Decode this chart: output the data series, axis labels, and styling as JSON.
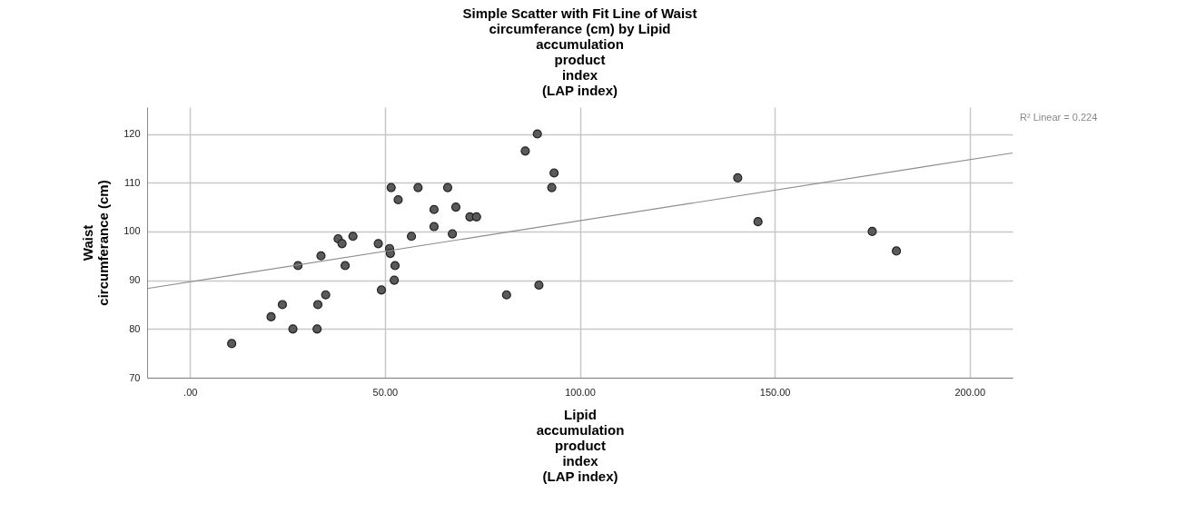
{
  "chart_data": {
    "type": "scatter",
    "title": "Simple Scatter with Fit Line of Waist\ncircumferance (cm) by Lipid\naccumulation\nproduct\nindex\n(LAP index)",
    "xlabel": "Lipid\naccumulation\nproduct\nindex\n(LAP index)",
    "ylabel": "Waist\ncircumferance (cm)",
    "xlim": [
      -11,
      211
    ],
    "ylim": [
      70,
      125.5
    ],
    "xticks": [
      {
        "value": 0,
        "label": ".00"
      },
      {
        "value": 50,
        "label": "50.00"
      },
      {
        "value": 100,
        "label": "100.00"
      },
      {
        "value": 150,
        "label": "150.00"
      },
      {
        "value": 200,
        "label": "200.00"
      }
    ],
    "yticks": [
      70,
      80,
      90,
      100,
      110,
      120
    ],
    "grid": true,
    "annotations": [
      "R² Linear = 0.224"
    ],
    "series": [
      {
        "color": "#5a5a5a",
        "marker": "circle",
        "x": [
          10.7,
          20.8,
          23.7,
          26.4,
          27.7,
          32.6,
          32.8,
          33.6,
          34.8,
          38,
          39,
          39.8,
          41.8,
          48.3,
          49.1,
          51.2,
          51.4,
          51.6,
          52.6,
          52.4,
          53.4,
          56.8,
          58.5,
          62.6,
          62.6,
          66.1,
          67.3,
          68.2,
          71.8,
          73.5,
          86,
          89.1,
          93.4,
          92.8,
          81.2,
          89.5,
          140.5,
          145.7,
          175,
          181.2
        ],
        "values": [
          77,
          82.5,
          85,
          80,
          93,
          80,
          85,
          95,
          87,
          98.5,
          97.5,
          93,
          99,
          97.5,
          88,
          96.5,
          95.5,
          109,
          93,
          90,
          106.5,
          99,
          109,
          104.5,
          101,
          109,
          99.5,
          105,
          103,
          103,
          116.5,
          120,
          112,
          109,
          87,
          89,
          111,
          102,
          100,
          96
        ]
      },
      {
        "type": "line",
        "color": "#8c8c8c",
        "x": [
          -11,
          211
        ],
        "values": [
          88.3,
          116.1
        ]
      }
    ]
  }
}
